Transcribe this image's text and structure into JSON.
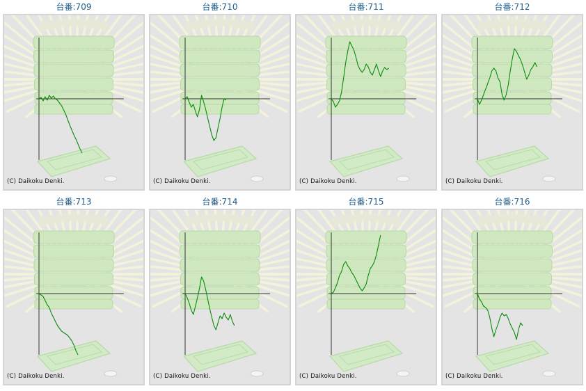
{
  "colors": {
    "line": "#0a8a0a",
    "axis": "#333333",
    "title": "#1f5c8a",
    "background": "#e4e4e4"
  },
  "copyright": "(C) Daikoku Denki.",
  "chart_data": [
    {
      "type": "line",
      "title": "台番:709",
      "values": [
        0,
        2,
        -3,
        3,
        -2,
        5,
        1,
        4,
        0,
        -2,
        -6,
        -10,
        -16,
        -22,
        -30,
        -38,
        -45,
        -52,
        -58,
        -65,
        -72,
        -78
      ]
    },
    {
      "type": "line",
      "title": "台番:710",
      "values": [
        0,
        3,
        -5,
        -12,
        -8,
        -18,
        -26,
        -15,
        5,
        -4,
        -15,
        -28,
        -40,
        -52,
        -60,
        -56,
        -42,
        -28,
        -12,
        0,
        -2
      ]
    },
    {
      "type": "line",
      "title": "台番:711",
      "values": [
        0,
        -4,
        -12,
        -8,
        -3,
        10,
        30,
        52,
        68,
        82,
        76,
        70,
        60,
        48,
        42,
        38,
        42,
        50,
        46,
        38,
        34,
        42,
        50,
        40,
        32,
        40,
        45,
        42,
        44
      ]
    },
    {
      "type": "line",
      "title": "台番:712",
      "values": [
        0,
        -8,
        -2,
        6,
        14,
        22,
        30,
        40,
        44,
        40,
        30,
        24,
        6,
        -2,
        6,
        20,
        40,
        58,
        72,
        68,
        62,
        56,
        48,
        38,
        28,
        34,
        42,
        46,
        52,
        46
      ]
    },
    {
      "type": "line",
      "title": "台番:713",
      "values": [
        0,
        -2,
        -4,
        -10,
        -16,
        -20,
        -28,
        -34,
        -40,
        -46,
        -50,
        -54,
        -56,
        -58,
        -60,
        -64,
        -68,
        -74,
        -82,
        -88
      ]
    },
    {
      "type": "line",
      "title": "台番:714",
      "values": [
        0,
        -6,
        -14,
        -24,
        -30,
        -18,
        -6,
        8,
        24,
        18,
        6,
        -8,
        -22,
        -34,
        -46,
        -52,
        -42,
        -32,
        -36,
        -28,
        -34,
        -38,
        -30,
        -40,
        -46
      ]
    },
    {
      "type": "line",
      "title": "台番:715",
      "values": [
        0,
        2,
        8,
        16,
        26,
        32,
        42,
        46,
        40,
        36,
        30,
        26,
        20,
        14,
        8,
        4,
        8,
        14,
        26,
        36,
        40,
        46,
        56,
        70,
        84
      ]
    },
    {
      "type": "line",
      "title": "台番:716",
      "values": [
        0,
        -8,
        -12,
        -18,
        -20,
        -24,
        -34,
        -50,
        -62,
        -52,
        -44,
        -34,
        -28,
        -32,
        -30,
        -36,
        -44,
        -50,
        -56,
        -66,
        -52,
        -42,
        -46
      ]
    }
  ]
}
